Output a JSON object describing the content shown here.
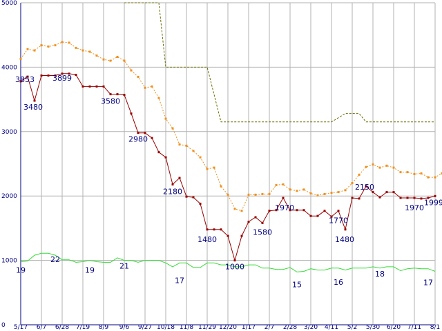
{
  "chart_data": {
    "type": "line",
    "ylim": [
      0,
      5000
    ],
    "yticks": [
      "0",
      "1000",
      "2000",
      "3000",
      "4000",
      "5000"
    ],
    "xlabels": [
      "5/17",
      "6/7",
      "6/28",
      "7/19",
      "8/9",
      "9/6",
      "9/27",
      "10/18",
      "11/8",
      "11/29",
      "12/20",
      "1/17",
      "2/7",
      "2/28",
      "3/20",
      "4/11",
      "5/2",
      "5/30",
      "6/20",
      "7/11",
      "8/1"
    ],
    "grid": true,
    "colors": {
      "red": "#990000",
      "orange": "#f0901e",
      "olive": "#6b6b00",
      "green": "#33dd33",
      "axis": "#000080",
      "grid": "#b0b0b0"
    },
    "series": [
      {
        "color": "#990000",
        "style": "solid",
        "values": [
          3780,
          3853,
          3480,
          3870,
          3870,
          3870,
          3899,
          3899,
          3880,
          3700,
          3700,
          3700,
          3700,
          3580,
          3580,
          3570,
          3280,
          2980,
          2980,
          2900,
          2680,
          2600,
          2180,
          2280,
          1990,
          1980,
          1880,
          1480,
          1480,
          1480,
          1380,
          1000,
          1380,
          1600,
          1670,
          1580,
          1770,
          1780,
          1970,
          1780,
          1780,
          1780,
          1690,
          1690,
          1770,
          1680,
          1770,
          1480,
          1970,
          1960,
          2150,
          2060,
          1980,
          2060,
          2060,
          1970,
          1970,
          1970,
          1960,
          1970,
          1999
        ]
      },
      {
        "color": "#f0901e",
        "style": "dotted",
        "values": [
          4130,
          4280,
          4260,
          4340,
          4320,
          4340,
          4390,
          4380,
          4300,
          4260,
          4240,
          4180,
          4120,
          4100,
          4160,
          4100,
          3950,
          3850,
          3680,
          3700,
          3520,
          3200,
          3050,
          2800,
          2780,
          2700,
          2600,
          2420,
          2440,
          2150,
          2020,
          1800,
          1770,
          2020,
          2020,
          2030,
          2030,
          2170,
          2180,
          2100,
          2080,
          2100,
          2040,
          2010,
          2030,
          2050,
          2060,
          2090,
          2200,
          2330,
          2450,
          2490,
          2440,
          2470,
          2440,
          2370,
          2370,
          2340,
          2350,
          2290,
          2290,
          2350
        ]
      },
      {
        "color": "#6b6b00",
        "style": "dashed",
        "points": [
          [
            15,
            5000
          ],
          [
            20,
            5000
          ],
          [
            21,
            4000
          ],
          [
            27,
            4000
          ],
          [
            29,
            3150
          ],
          [
            45,
            3150
          ],
          [
            47,
            3280
          ],
          [
            49,
            3280
          ],
          [
            50,
            3150
          ],
          [
            60,
            3150
          ]
        ]
      },
      {
        "color": "#33dd33",
        "style": "solid",
        "values": [
          980,
          990,
          1080,
          1110,
          1110,
          1080,
          1010,
          1010,
          970,
          980,
          1000,
          980,
          970,
          970,
          1040,
          1000,
          1000,
          970,
          1000,
          1000,
          1000,
          960,
          900,
          960,
          960,
          890,
          890,
          960,
          960,
          930,
          930,
          900,
          900,
          930,
          930,
          880,
          880,
          860,
          860,
          890,
          820,
          830,
          870,
          850,
          850,
          880,
          880,
          850,
          880,
          880,
          880,
          900,
          880,
          900,
          900,
          840,
          870,
          880,
          870,
          870,
          830
        ]
      }
    ],
    "data_labels": [
      {
        "text": "3853",
        "x": 1,
        "y": 3853,
        "dx": -4,
        "dy": 8
      },
      {
        "text": "3480",
        "x": 2,
        "y": 3480,
        "dx": -2,
        "dy": 13
      },
      {
        "text": "3899",
        "x": 6,
        "y": 3899,
        "dx": 0,
        "dy": 10
      },
      {
        "text": "3580",
        "x": 13,
        "y": 3580,
        "dx": 0,
        "dy": 14
      },
      {
        "text": "2980",
        "x": 17,
        "y": 2980,
        "dx": 0,
        "dy": 13
      },
      {
        "text": "2180",
        "x": 22,
        "y": 2180,
        "dx": 0,
        "dy": 14
      },
      {
        "text": "1480",
        "x": 27,
        "y": 1480,
        "dx": 0,
        "dy": 18
      },
      {
        "text": "1000",
        "x": 31,
        "y": 1000,
        "dx": 0,
        "dy": 13
      },
      {
        "text": "1580",
        "x": 35,
        "y": 1580,
        "dx": 0,
        "dy": 17
      },
      {
        "text": "1970",
        "x": 38,
        "y": 1970,
        "dx": 2,
        "dy": 18
      },
      {
        "text": "1770",
        "x": 46,
        "y": 1770,
        "dx": 0,
        "dy": 18
      },
      {
        "text": "1480",
        "x": 47,
        "y": 1480,
        "dx": -1,
        "dy": 18
      },
      {
        "text": "2150",
        "x": 50,
        "y": 2150,
        "dx": -2,
        "dy": 5
      },
      {
        "text": "1970",
        "x": 57,
        "y": 1970,
        "dx": 0,
        "dy": 18
      },
      {
        "text": "1999",
        "x": 60,
        "y": 1999,
        "dx": -2,
        "dy": 13
      },
      {
        "text": "19",
        "x": 0,
        "y": 980,
        "dx": 0,
        "dy": 16
      },
      {
        "text": "22",
        "x": 5,
        "y": 1080,
        "dx": 0,
        "dy": 10
      },
      {
        "text": "19",
        "x": 10,
        "y": 1000,
        "dx": 0,
        "dy": 18
      },
      {
        "text": "21",
        "x": 15,
        "y": 1000,
        "dx": 0,
        "dy": 12
      },
      {
        "text": "17",
        "x": 23,
        "y": 960,
        "dx": 0,
        "dy": 29
      },
      {
        "text": "15",
        "x": 40,
        "y": 820,
        "dx": 0,
        "dy": 22
      },
      {
        "text": "16",
        "x": 46,
        "y": 880,
        "dx": 0,
        "dy": 24
      },
      {
        "text": "18",
        "x": 52,
        "y": 900,
        "dx": 0,
        "dy": 14
      },
      {
        "text": "17",
        "x": 59,
        "y": 870,
        "dx": 0,
        "dy": 24
      }
    ]
  }
}
